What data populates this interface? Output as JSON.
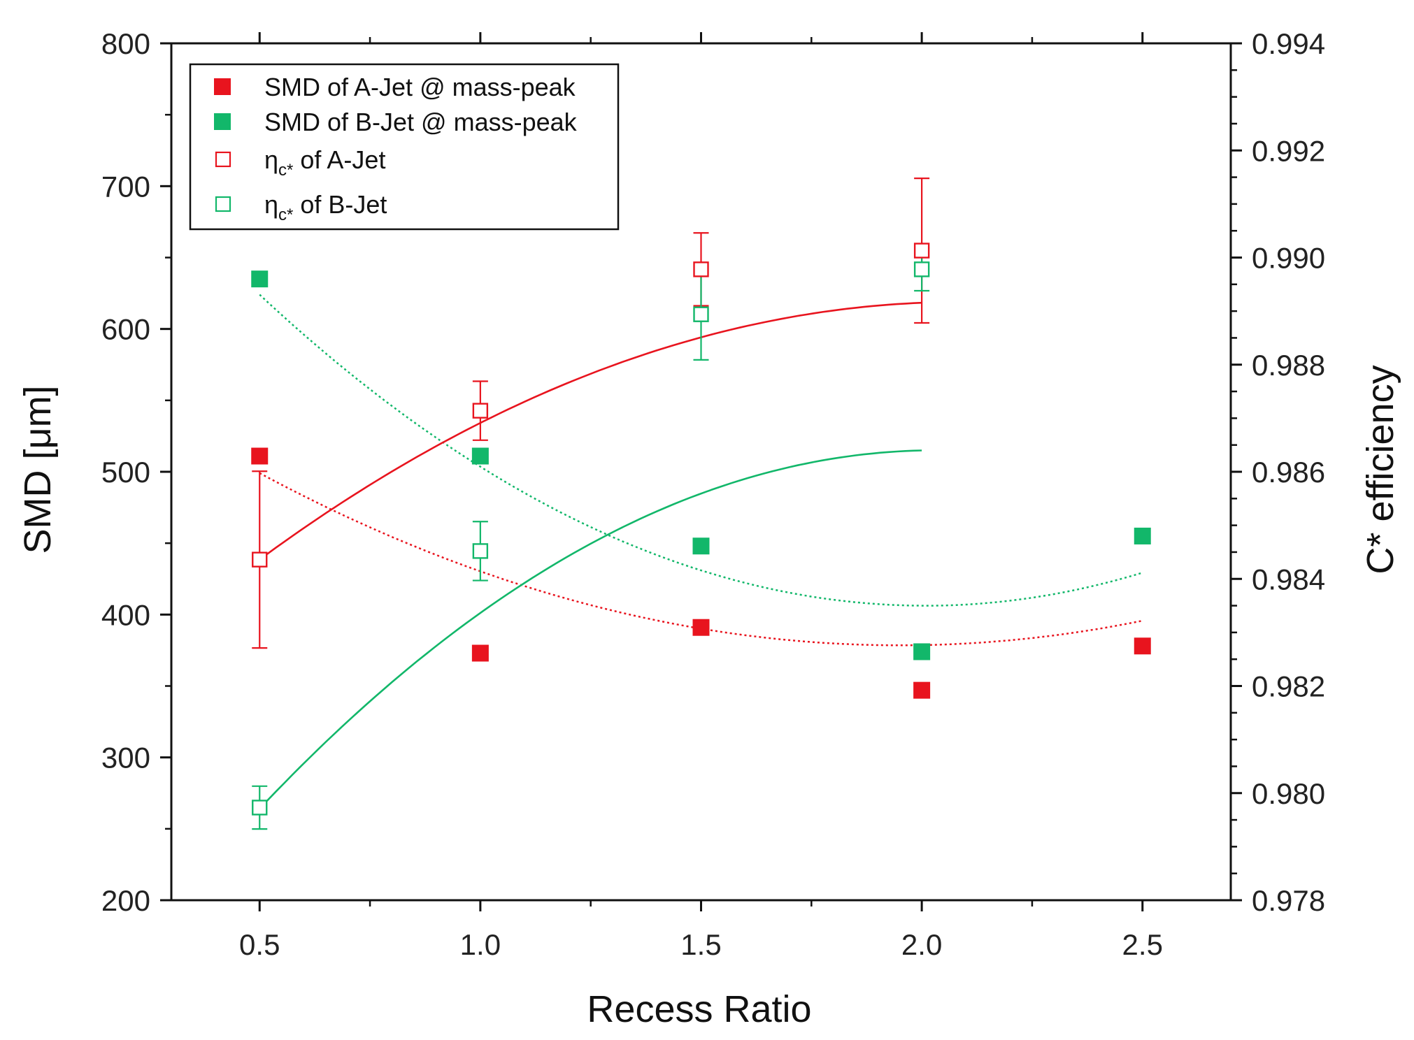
{
  "chart_data": {
    "type": "scatter",
    "title": "",
    "xlabel": "Recess Ratio",
    "ylabel_left": "SMD [μm]",
    "ylabel_right": "C* efficiency",
    "xlim": [
      0.3,
      2.7
    ],
    "ylim_left": [
      200,
      800
    ],
    "ylim_right": [
      0.978,
      0.994
    ],
    "x_ticks": [
      "0.5",
      "1.0",
      "1.5",
      "2.0",
      "2.5"
    ],
    "x_tick_values": [
      0.5,
      1.0,
      1.5,
      2.0,
      2.5
    ],
    "y_left_ticks": [
      "200",
      "300",
      "400",
      "500",
      "600",
      "700",
      "800"
    ],
    "y_left_tick_values": [
      200,
      300,
      400,
      500,
      600,
      700,
      800
    ],
    "y_right_ticks": [
      "0.978",
      "0.980",
      "0.982",
      "0.984",
      "0.986",
      "0.988",
      "0.990",
      "0.992",
      "0.994"
    ],
    "y_right_tick_values": [
      0.978,
      0.98,
      0.982,
      0.984,
      0.986,
      0.988,
      0.99,
      0.992,
      0.994
    ],
    "legend_position": "top-left",
    "colors": {
      "red": "#e8141e",
      "green": "#12b76a"
    },
    "series": [
      {
        "name": "SMD of A-Jet @ mass-peak",
        "legend_parts": [
          "SMD of A-Jet @ mass-peak"
        ],
        "axis": "left",
        "marker": "filled-square",
        "color": "red",
        "x": [
          0.5,
          1.0,
          1.5,
          2.0,
          2.5
        ],
        "y": [
          511,
          373,
          391,
          347,
          378
        ],
        "fit": {
          "style": "dotted",
          "coeffs": [
            596.44,
            -223.39,
            57.24
          ]
        }
      },
      {
        "name": "SMD of B-Jet @ mass-peak",
        "legend_parts": [
          "SMD of B-Jet @ mass-peak"
        ],
        "axis": "left",
        "marker": "filled-square",
        "color": "green",
        "x": [
          0.5,
          1.0,
          1.5,
          2.0,
          2.5
        ],
        "y": [
          635,
          511,
          448,
          374,
          455
        ],
        "fit": {
          "style": "dotted",
          "coeffs": [
            792.31,
            -384.46,
            95.71
          ]
        }
      },
      {
        "name": "ηc* of A-Jet",
        "legend_parts": [
          "η",
          "c*",
          " of A-Jet"
        ],
        "axis": "right",
        "marker": "open-square",
        "color": "red",
        "x": [
          0.5,
          1.0,
          1.5,
          2.0
        ],
        "y": [
          0.98436,
          0.98714,
          0.98978,
          0.99013
        ],
        "err": [
          0.00165,
          0.00055,
          0.00068,
          0.00135
        ],
        "fit": {
          "style": "solid",
          "coeffs": [
            0.98086,
            0.007956,
            -0.001904
          ]
        }
      },
      {
        "name": "ηc* of B-Jet",
        "legend_parts": [
          "η",
          "c*",
          " of B-Jet"
        ],
        "axis": "right",
        "marker": "open-square",
        "color": "green",
        "x": [
          0.5,
          1.0,
          1.5,
          2.0
        ],
        "y": [
          0.97973,
          0.98452,
          0.98894,
          0.98978
        ],
        "err": [
          0.0004,
          0.00055,
          0.00085,
          0.0004
        ],
        "fit": {
          "style": "solid",
          "coeffs": [
            0.97463,
            0.011584,
            -0.00285
          ]
        }
      }
    ]
  }
}
